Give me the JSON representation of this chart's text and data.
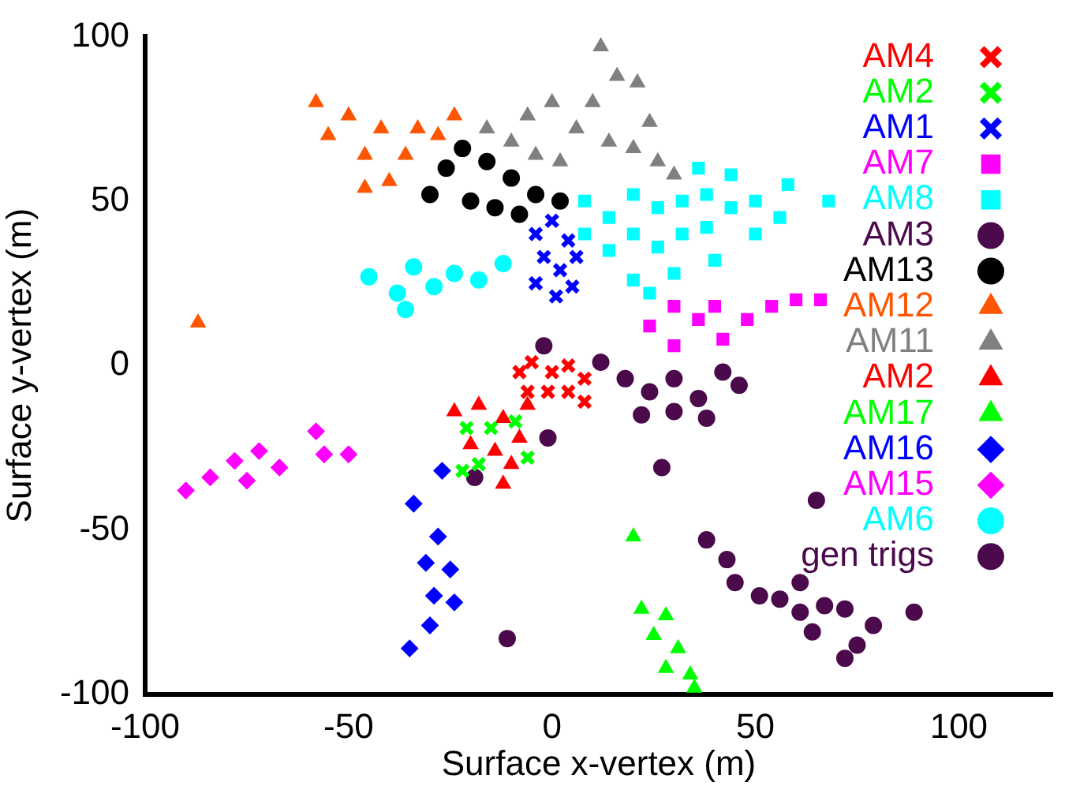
{
  "chart_data": {
    "type": "scatter",
    "xlabel": "Surface x-vertex (m)",
    "ylabel": "Surface y-vertex (m)",
    "xlim": [
      -100,
      123
    ],
    "ylim": [
      -100,
      100
    ],
    "xticks": [
      -100,
      -50,
      0,
      50,
      100
    ],
    "yticks": [
      -100,
      -50,
      0,
      50,
      100
    ],
    "grid": false,
    "legend": "top right",
    "series": [
      {
        "name": "AM4",
        "color": "#ff0000",
        "marker": "cross",
        "x": [
          -8,
          -5,
          0,
          4,
          8,
          -6,
          -1,
          4,
          8
        ],
        "values": [
          -2,
          1,
          -2,
          0,
          -4,
          -8,
          -8,
          -8,
          -11
        ]
      },
      {
        "name": "AM2",
        "color": "#00ff00",
        "marker": "cross",
        "x": [
          -21,
          -15,
          -9,
          -18,
          -22,
          -6
        ],
        "values": [
          -19,
          -19,
          -17,
          -30,
          -32,
          -28
        ]
      },
      {
        "name": "AM1",
        "color": "#0000ff",
        "marker": "cross",
        "x": [
          -4,
          0,
          4,
          -2,
          2,
          6,
          -4,
          1,
          5
        ],
        "values": [
          40,
          44,
          38,
          33,
          29,
          33,
          25,
          21,
          24
        ]
      },
      {
        "name": "AM7",
        "color": "#ff00ff",
        "marker": "square",
        "x": [
          24,
          30,
          36,
          42,
          48,
          54,
          60,
          66,
          30,
          40
        ],
        "values": [
          12,
          6,
          14,
          8,
          14,
          18,
          20,
          20,
          18,
          18
        ]
      },
      {
        "name": "AM8",
        "color": "#00ffff",
        "marker": "square",
        "x": [
          8,
          8,
          14,
          14,
          20,
          20,
          26,
          26,
          32,
          32,
          38,
          38,
          44,
          44,
          50,
          50,
          56,
          58,
          68,
          36,
          30,
          40,
          20,
          24
        ],
        "values": [
          50,
          40,
          45,
          35,
          52,
          40,
          48,
          36,
          50,
          40,
          52,
          42,
          48,
          58,
          50,
          40,
          45,
          55,
          50,
          60,
          28,
          32,
          26,
          22
        ]
      },
      {
        "name": "AM3",
        "color": "#4b0a4b",
        "marker": "circle",
        "x": [
          12,
          18,
          24,
          30,
          36,
          42,
          46,
          22,
          30,
          38
        ],
        "values": [
          1,
          -4,
          -8,
          -4,
          -10,
          -2,
          -6,
          -15,
          -14,
          -16
        ]
      },
      {
        "name": "AM13",
        "color": "#000000",
        "marker": "circle",
        "x": [
          -30,
          -26,
          -22,
          -16,
          -10,
          -4,
          2,
          -20,
          -14,
          -8
        ],
        "values": [
          52,
          60,
          66,
          62,
          57,
          52,
          50,
          50,
          48,
          46
        ]
      },
      {
        "name": "AM12",
        "color": "#ff5500",
        "marker": "triangle",
        "x": [
          -87,
          -58,
          -55,
          -50,
          -46,
          -42,
          -40,
          -36,
          -33,
          -28,
          -24,
          -46
        ],
        "values": [
          13,
          80,
          70,
          76,
          64,
          72,
          56,
          64,
          72,
          70,
          76,
          54
        ]
      },
      {
        "name": "AM11",
        "color": "#808080",
        "marker": "triangle",
        "x": [
          -16,
          -10,
          -4,
          2,
          6,
          10,
          12,
          16,
          21,
          14,
          20,
          26,
          30,
          24,
          -6,
          0
        ],
        "values": [
          72,
          68,
          64,
          62,
          72,
          80,
          97,
          88,
          86,
          68,
          66,
          62,
          58,
          74,
          76,
          80
        ]
      },
      {
        "name": "AM2",
        "color": "#ff0000",
        "marker": "triangle",
        "x": [
          -24,
          -18,
          -12,
          -6,
          -20,
          -14,
          -8,
          -12,
          -10
        ],
        "values": [
          -14,
          -12,
          -16,
          -12,
          -24,
          -26,
          -22,
          -36,
          -30
        ]
      },
      {
        "name": "AM17",
        "color": "#00ff00",
        "marker": "triangle",
        "x": [
          20,
          22,
          28,
          25,
          31,
          28,
          34,
          35
        ],
        "values": [
          -52,
          -74,
          -76,
          -82,
          -86,
          -92,
          -94,
          -98
        ]
      },
      {
        "name": "AM16",
        "color": "#0000ff",
        "marker": "diamond",
        "x": [
          -27,
          -34,
          -28,
          -31,
          -25,
          -29,
          -24,
          -30,
          -35
        ],
        "values": [
          -32,
          -42,
          -52,
          -60,
          -62,
          -70,
          -72,
          -79,
          -86
        ]
      },
      {
        "name": "AM15",
        "color": "#ff00ff",
        "marker": "diamond",
        "x": [
          -90,
          -84,
          -78,
          -72,
          -75,
          -67,
          -58,
          -56,
          -50
        ],
        "values": [
          -38,
          -34,
          -29,
          -26,
          -35,
          -31,
          -20,
          -27,
          -27
        ]
      },
      {
        "name": "AM6",
        "color": "#00ffff",
        "marker": "circle",
        "x": [
          -45,
          -38,
          -34,
          -29,
          -24,
          -18,
          -12,
          -36
        ],
        "values": [
          27,
          22,
          30,
          24,
          28,
          26,
          31,
          17
        ]
      },
      {
        "name": "gen trigs",
        "color": "#4b0a4b",
        "marker": "circle",
        "x": [
          -2,
          -19,
          -1,
          -11,
          27,
          65,
          38,
          43,
          45,
          51,
          56,
          61,
          61,
          64,
          67,
          72,
          79,
          75,
          72,
          89
        ],
        "values": [
          6,
          -34,
          -22,
          -83,
          -31,
          -41,
          -53,
          -59,
          -66,
          -70,
          -71,
          -66,
          -75,
          -81,
          -73,
          -74,
          -79,
          -85,
          -89,
          -75
        ]
      }
    ]
  }
}
